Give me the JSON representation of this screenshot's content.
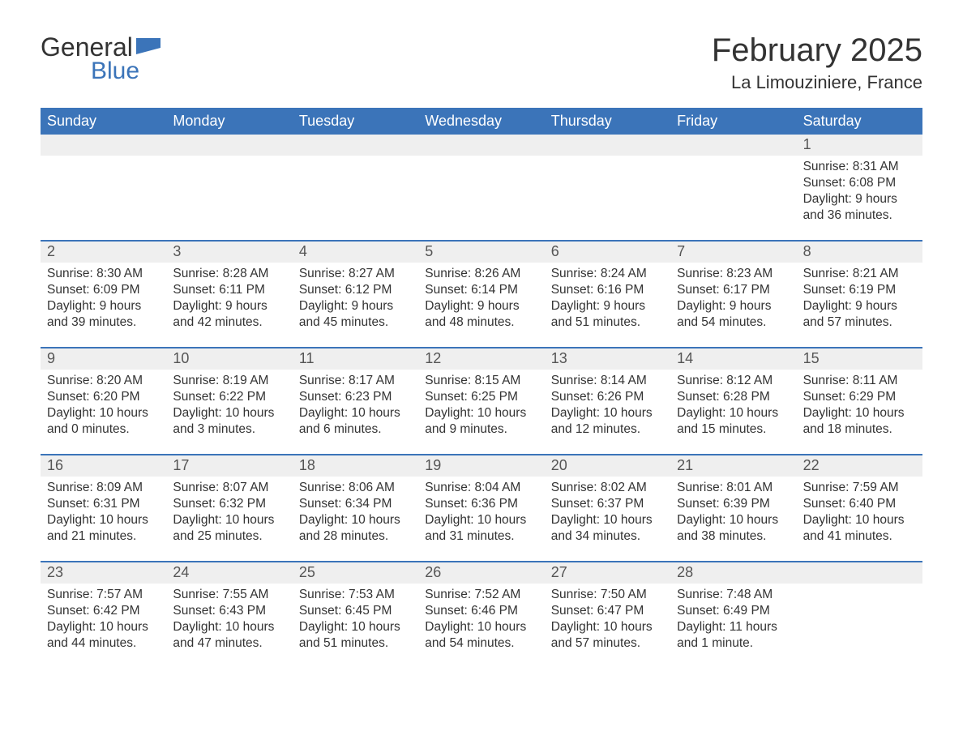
{
  "logo": {
    "word1": "General",
    "word2": "Blue",
    "icon_color": "#3b74b9"
  },
  "title": "February 2025",
  "location": "La Limouziniere, France",
  "colors": {
    "header_bg": "#3b74b9",
    "header_text": "#ffffff",
    "daynum_bg": "#efefef",
    "accent_line": "#3b74b9",
    "body_text": "#333333"
  },
  "day_headers": [
    "Sunday",
    "Monday",
    "Tuesday",
    "Wednesday",
    "Thursday",
    "Friday",
    "Saturday"
  ],
  "weeks": [
    [
      {
        "num": "",
        "sunrise": "",
        "sunset": "",
        "daylight": ""
      },
      {
        "num": "",
        "sunrise": "",
        "sunset": "",
        "daylight": ""
      },
      {
        "num": "",
        "sunrise": "",
        "sunset": "",
        "daylight": ""
      },
      {
        "num": "",
        "sunrise": "",
        "sunset": "",
        "daylight": ""
      },
      {
        "num": "",
        "sunrise": "",
        "sunset": "",
        "daylight": ""
      },
      {
        "num": "",
        "sunrise": "",
        "sunset": "",
        "daylight": ""
      },
      {
        "num": "1",
        "sunrise": "Sunrise: 8:31 AM",
        "sunset": "Sunset: 6:08 PM",
        "daylight": "Daylight: 9 hours and 36 minutes."
      }
    ],
    [
      {
        "num": "2",
        "sunrise": "Sunrise: 8:30 AM",
        "sunset": "Sunset: 6:09 PM",
        "daylight": "Daylight: 9 hours and 39 minutes."
      },
      {
        "num": "3",
        "sunrise": "Sunrise: 8:28 AM",
        "sunset": "Sunset: 6:11 PM",
        "daylight": "Daylight: 9 hours and 42 minutes."
      },
      {
        "num": "4",
        "sunrise": "Sunrise: 8:27 AM",
        "sunset": "Sunset: 6:12 PM",
        "daylight": "Daylight: 9 hours and 45 minutes."
      },
      {
        "num": "5",
        "sunrise": "Sunrise: 8:26 AM",
        "sunset": "Sunset: 6:14 PM",
        "daylight": "Daylight: 9 hours and 48 minutes."
      },
      {
        "num": "6",
        "sunrise": "Sunrise: 8:24 AM",
        "sunset": "Sunset: 6:16 PM",
        "daylight": "Daylight: 9 hours and 51 minutes."
      },
      {
        "num": "7",
        "sunrise": "Sunrise: 8:23 AM",
        "sunset": "Sunset: 6:17 PM",
        "daylight": "Daylight: 9 hours and 54 minutes."
      },
      {
        "num": "8",
        "sunrise": "Sunrise: 8:21 AM",
        "sunset": "Sunset: 6:19 PM",
        "daylight": "Daylight: 9 hours and 57 minutes."
      }
    ],
    [
      {
        "num": "9",
        "sunrise": "Sunrise: 8:20 AM",
        "sunset": "Sunset: 6:20 PM",
        "daylight": "Daylight: 10 hours and 0 minutes."
      },
      {
        "num": "10",
        "sunrise": "Sunrise: 8:19 AM",
        "sunset": "Sunset: 6:22 PM",
        "daylight": "Daylight: 10 hours and 3 minutes."
      },
      {
        "num": "11",
        "sunrise": "Sunrise: 8:17 AM",
        "sunset": "Sunset: 6:23 PM",
        "daylight": "Daylight: 10 hours and 6 minutes."
      },
      {
        "num": "12",
        "sunrise": "Sunrise: 8:15 AM",
        "sunset": "Sunset: 6:25 PM",
        "daylight": "Daylight: 10 hours and 9 minutes."
      },
      {
        "num": "13",
        "sunrise": "Sunrise: 8:14 AM",
        "sunset": "Sunset: 6:26 PM",
        "daylight": "Daylight: 10 hours and 12 minutes."
      },
      {
        "num": "14",
        "sunrise": "Sunrise: 8:12 AM",
        "sunset": "Sunset: 6:28 PM",
        "daylight": "Daylight: 10 hours and 15 minutes."
      },
      {
        "num": "15",
        "sunrise": "Sunrise: 8:11 AM",
        "sunset": "Sunset: 6:29 PM",
        "daylight": "Daylight: 10 hours and 18 minutes."
      }
    ],
    [
      {
        "num": "16",
        "sunrise": "Sunrise: 8:09 AM",
        "sunset": "Sunset: 6:31 PM",
        "daylight": "Daylight: 10 hours and 21 minutes."
      },
      {
        "num": "17",
        "sunrise": "Sunrise: 8:07 AM",
        "sunset": "Sunset: 6:32 PM",
        "daylight": "Daylight: 10 hours and 25 minutes."
      },
      {
        "num": "18",
        "sunrise": "Sunrise: 8:06 AM",
        "sunset": "Sunset: 6:34 PM",
        "daylight": "Daylight: 10 hours and 28 minutes."
      },
      {
        "num": "19",
        "sunrise": "Sunrise: 8:04 AM",
        "sunset": "Sunset: 6:36 PM",
        "daylight": "Daylight: 10 hours and 31 minutes."
      },
      {
        "num": "20",
        "sunrise": "Sunrise: 8:02 AM",
        "sunset": "Sunset: 6:37 PM",
        "daylight": "Daylight: 10 hours and 34 minutes."
      },
      {
        "num": "21",
        "sunrise": "Sunrise: 8:01 AM",
        "sunset": "Sunset: 6:39 PM",
        "daylight": "Daylight: 10 hours and 38 minutes."
      },
      {
        "num": "22",
        "sunrise": "Sunrise: 7:59 AM",
        "sunset": "Sunset: 6:40 PM",
        "daylight": "Daylight: 10 hours and 41 minutes."
      }
    ],
    [
      {
        "num": "23",
        "sunrise": "Sunrise: 7:57 AM",
        "sunset": "Sunset: 6:42 PM",
        "daylight": "Daylight: 10 hours and 44 minutes."
      },
      {
        "num": "24",
        "sunrise": "Sunrise: 7:55 AM",
        "sunset": "Sunset: 6:43 PM",
        "daylight": "Daylight: 10 hours and 47 minutes."
      },
      {
        "num": "25",
        "sunrise": "Sunrise: 7:53 AM",
        "sunset": "Sunset: 6:45 PM",
        "daylight": "Daylight: 10 hours and 51 minutes."
      },
      {
        "num": "26",
        "sunrise": "Sunrise: 7:52 AM",
        "sunset": "Sunset: 6:46 PM",
        "daylight": "Daylight: 10 hours and 54 minutes."
      },
      {
        "num": "27",
        "sunrise": "Sunrise: 7:50 AM",
        "sunset": "Sunset: 6:47 PM",
        "daylight": "Daylight: 10 hours and 57 minutes."
      },
      {
        "num": "28",
        "sunrise": "Sunrise: 7:48 AM",
        "sunset": "Sunset: 6:49 PM",
        "daylight": "Daylight: 11 hours and 1 minute."
      },
      {
        "num": "",
        "sunrise": "",
        "sunset": "",
        "daylight": ""
      }
    ]
  ]
}
